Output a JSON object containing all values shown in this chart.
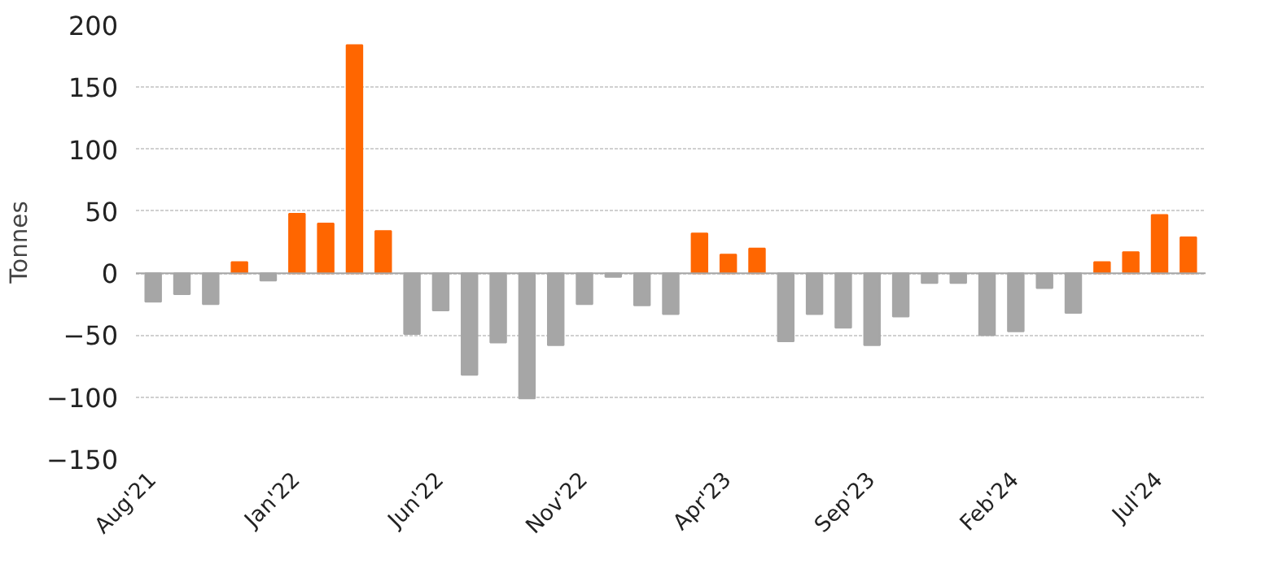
{
  "chart_data": {
    "type": "bar",
    "ylabel": "Tonnes",
    "categories": [
      "Aug'21",
      null,
      null,
      null,
      null,
      "Jan'22",
      null,
      null,
      null,
      null,
      "Jun'22",
      null,
      null,
      null,
      null,
      "Nov'22",
      null,
      null,
      null,
      null,
      "Apr'23",
      null,
      null,
      null,
      null,
      "Sep'23",
      null,
      null,
      null,
      null,
      "Feb'24",
      null,
      null,
      null,
      null,
      "Jul'24",
      null
    ],
    "values": [
      -23,
      -17,
      -25,
      9,
      -6,
      48,
      40,
      184,
      34,
      -49,
      -30,
      -82,
      -56,
      -101,
      -58,
      -25,
      -3,
      -26,
      -33,
      32,
      15,
      20,
      -55,
      -33,
      -44,
      -58,
      -35,
      -8,
      -8,
      -50,
      -47,
      -12,
      -32,
      9,
      17,
      47,
      29
    ],
    "colors": [
      "#a6a6a6",
      "#a6a6a6",
      "#a6a6a6",
      "#ff6600",
      "#a6a6a6",
      "#ff6600",
      "#ff6600",
      "#ff6600",
      "#ff6600",
      "#a6a6a6",
      "#a6a6a6",
      "#a6a6a6",
      "#a6a6a6",
      "#a6a6a6",
      "#a6a6a6",
      "#a6a6a6",
      "#a6a6a6",
      "#a6a6a6",
      "#a6a6a6",
      "#ff6600",
      "#ff6600",
      "#ff6600",
      "#a6a6a6",
      "#a6a6a6",
      "#a6a6a6",
      "#a6a6a6",
      "#a6a6a6",
      "#a6a6a6",
      "#a6a6a6",
      "#a6a6a6",
      "#a6a6a6",
      "#a6a6a6",
      "#a6a6a6",
      "#ff6600",
      "#ff6600",
      "#ff6600",
      "#ff6600"
    ],
    "ylim": [
      -150,
      200
    ],
    "yticks": [
      -150,
      -100,
      -50,
      0,
      50,
      100,
      150,
      200
    ],
    "grid": "y"
  }
}
